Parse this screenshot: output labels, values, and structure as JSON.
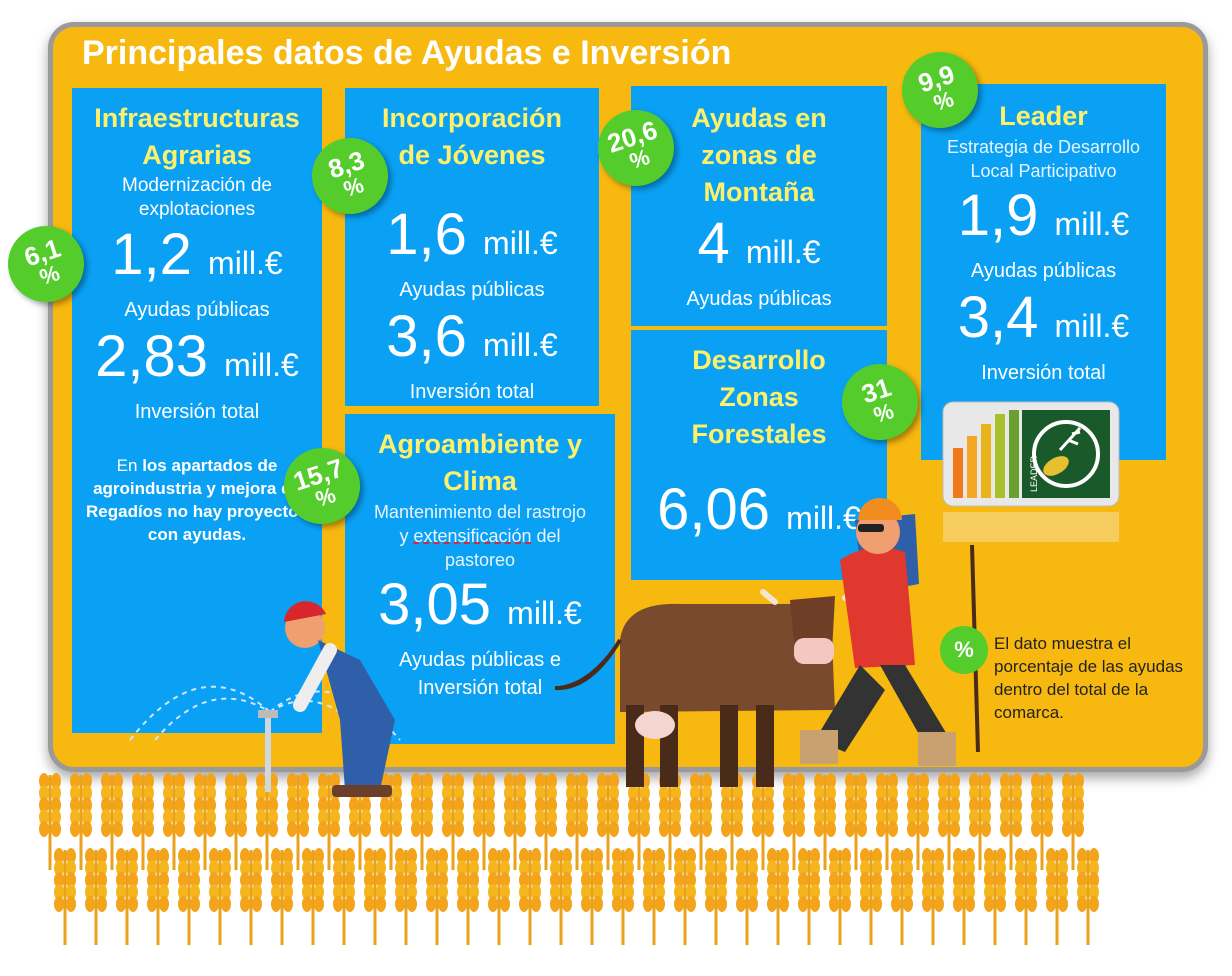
{
  "title": "Principales datos de Ayudas e Inversión",
  "colors": {
    "board": "#f7b80f",
    "card": "#0aa1f5",
    "heading": "#fdf06a",
    "badge": "#54cd2c"
  },
  "cards": {
    "infra": {
      "heading1": "Infraestructuras",
      "heading2": "Agrarias",
      "sub1": "Modernización de",
      "sub2": "explotaciones",
      "value1": "1,2",
      "unit1": "mill.€",
      "label1": "Ayudas públicas",
      "value2": "2,83",
      "unit2": "mill.€",
      "label2": "Inversión total",
      "note_pre": "En ",
      "note_bold": "los apartados de agroindustria y mejora en Regadíos no hay proyectos con ayudas.",
      "badge_num": "6,1",
      "badge_pct": "%"
    },
    "jovenes": {
      "heading1": "Incorporación",
      "heading2": "de Jóvenes",
      "value1": "1,6",
      "unit1": "mill.€",
      "label1": "Ayudas públicas",
      "value2": "3,6",
      "unit2": "mill.€",
      "label2": "Inversión total",
      "badge_num": "8,3",
      "badge_pct": "%"
    },
    "montana": {
      "heading1": "Ayudas en",
      "heading2": "zonas de",
      "heading3": "Montaña",
      "value1": "4",
      "unit1": "mill.€",
      "label1": "Ayudas públicas",
      "badge_num": "20,6",
      "badge_pct": "%"
    },
    "leader": {
      "heading": "Leader",
      "sub1": "Estrategia de Desarrollo",
      "sub2": "Local Participativo",
      "value1": "1,9",
      "unit1": "mill.€",
      "label1": "Ayudas públicas",
      "value2": "3,4",
      "unit2": "mill.€",
      "label2": "Inversión total",
      "badge_num": "9,9",
      "badge_pct": "%",
      "logo_text": "LEADER"
    },
    "agroambiente": {
      "heading1": "Agroambiente y",
      "heading2": "Clima",
      "sub1": "Mantenimiento del rastrojo",
      "sub2_pre": "y ",
      "sub2_underline": "extensificación",
      "sub2_post": " del",
      "sub3": "pastoreo",
      "value1": "3,05",
      "unit1": "mill.€",
      "label1": "Ayudas públicas e",
      "label2": "Inversión total",
      "badge_num": "15,7",
      "badge_pct": "%"
    },
    "forestales": {
      "heading1": "Desarrollo",
      "heading2": "Zonas",
      "heading3": "Forestales",
      "value1": "6,06",
      "unit1": "mill.€",
      "badge_num": "31",
      "badge_pct": "%"
    }
  },
  "legend": {
    "badge": "%",
    "text": "El dato muestra el porcentaje de las ayudas dentro del total de la comarca."
  }
}
